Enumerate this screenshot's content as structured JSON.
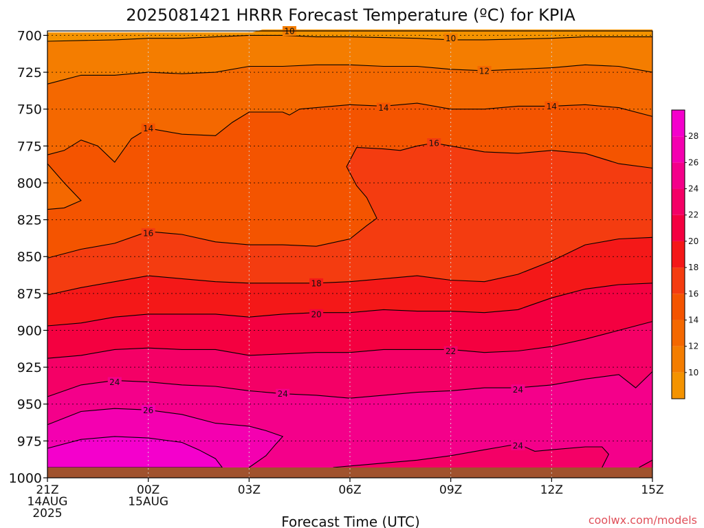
{
  "chart_data": {
    "type": "heatmap",
    "title": "2025081421 HRRR Forecast Temperature (ºC) for KPIA",
    "xlabel": "Forecast Time (UTC)",
    "ylabel": "",
    "credit": "coolwx.com/models",
    "x_ticks": [
      {
        "hour": 0,
        "lines": [
          "21Z",
          "14AUG",
          "2025"
        ]
      },
      {
        "hour": 3,
        "lines": [
          "00Z",
          "15AUG"
        ]
      },
      {
        "hour": 6,
        "lines": [
          "03Z"
        ]
      },
      {
        "hour": 9,
        "lines": [
          "06Z"
        ]
      },
      {
        "hour": 12,
        "lines": [
          "09Z"
        ]
      },
      {
        "hour": 15,
        "lines": [
          "12Z"
        ]
      },
      {
        "hour": 18,
        "lines": [
          "15Z"
        ]
      }
    ],
    "x_range": [
      0,
      18
    ],
    "y_ticks": [
      700,
      725,
      750,
      775,
      800,
      825,
      850,
      875,
      900,
      925,
      950,
      975,
      1000
    ],
    "y_range": [
      697,
      1000
    ],
    "y_reversed": true,
    "ground_top_pressure": 993,
    "colorbar_levels": [
      10,
      12,
      14,
      16,
      18,
      20,
      22,
      24,
      26,
      28
    ],
    "colorbar_colors": [
      "#f49300",
      "#f47d00",
      "#f46800",
      "#f45400",
      "#f43c10",
      "#f41818",
      "#f40040",
      "#f40066",
      "#f4008a",
      "#f400b0",
      "#f400cc"
    ],
    "ground_color": "#a0522d",
    "grid": true,
    "fill_bands": [
      {
        "lower_level": null,
        "color": "#f49300",
        "boundary": [
          [
            0,
            698
          ],
          [
            6.1,
            698
          ],
          [
            6.4,
            696
          ],
          [
            18,
            696
          ]
        ]
      },
      {
        "lower_level": 10,
        "color": "#f47d00",
        "boundary": [
          [
            0,
            704
          ],
          [
            2,
            703
          ],
          [
            3,
            702
          ],
          [
            4,
            702
          ],
          [
            6,
            700
          ],
          [
            7,
            700
          ],
          [
            8,
            701
          ],
          [
            9,
            701
          ],
          [
            11,
            702
          ],
          [
            12,
            703
          ],
          [
            13,
            703
          ],
          [
            15,
            702
          ],
          [
            16,
            701
          ],
          [
            17,
            701
          ],
          [
            18,
            701
          ]
        ]
      },
      {
        "lower_level": 12,
        "color": "#f46800",
        "boundary": [
          [
            0,
            733
          ],
          [
            1,
            727
          ],
          [
            2,
            727
          ],
          [
            3,
            725
          ],
          [
            4,
            726
          ],
          [
            5,
            725
          ],
          [
            6,
            721
          ],
          [
            7,
            721
          ],
          [
            8,
            720
          ],
          [
            9,
            720
          ],
          [
            10,
            721
          ],
          [
            11,
            721
          ],
          [
            12,
            723
          ],
          [
            13,
            724
          ],
          [
            15,
            722
          ],
          [
            16,
            720
          ],
          [
            17,
            721
          ],
          [
            18,
            725
          ]
        ]
      },
      {
        "lower_level": 14,
        "color": "#f45400",
        "boundary": [
          [
            0,
            781
          ],
          [
            0.5,
            778
          ],
          [
            1,
            771
          ],
          [
            1.5,
            775
          ],
          [
            2,
            786
          ],
          [
            2.5,
            770
          ],
          [
            3,
            763
          ],
          [
            4,
            767
          ],
          [
            5,
            768
          ],
          [
            5.5,
            759
          ],
          [
            6,
            752
          ],
          [
            7,
            752
          ],
          [
            7.2,
            754
          ],
          [
            7.5,
            750
          ],
          [
            8,
            749
          ],
          [
            9,
            747
          ],
          [
            10,
            748
          ],
          [
            11,
            746
          ],
          [
            12,
            750
          ],
          [
            13,
            750
          ],
          [
            14,
            748
          ],
          [
            15,
            748
          ],
          [
            16,
            747
          ],
          [
            17,
            749
          ],
          [
            18,
            755
          ]
        ]
      },
      {
        "lower_level": 16,
        "color": "#f43c10",
        "boundary": [
          [
            0,
            851
          ],
          [
            1,
            845
          ],
          [
            2,
            841
          ],
          [
            3,
            833
          ],
          [
            4,
            835
          ],
          [
            5,
            840
          ],
          [
            6,
            842
          ],
          [
            7,
            842
          ],
          [
            8,
            843
          ],
          [
            9,
            838
          ],
          [
            9.5,
            829
          ],
          [
            9.8,
            824
          ],
          [
            9.5,
            810
          ],
          [
            9.2,
            802
          ],
          [
            8.9,
            789
          ],
          [
            9.2,
            776
          ],
          [
            10,
            777
          ],
          [
            10.5,
            778
          ],
          [
            11,
            775
          ],
          [
            11.5,
            773
          ],
          [
            12,
            775
          ],
          [
            13,
            779
          ],
          [
            14,
            780
          ],
          [
            15,
            778
          ],
          [
            16,
            780
          ],
          [
            17,
            787
          ],
          [
            18,
            790
          ]
        ]
      },
      {
        "lower_level": 18,
        "color": "#f41818",
        "boundary": [
          [
            0,
            876
          ],
          [
            1,
            871
          ],
          [
            2,
            867
          ],
          [
            3,
            863
          ],
          [
            4,
            865
          ],
          [
            5,
            867
          ],
          [
            6,
            868
          ],
          [
            7,
            868
          ],
          [
            8,
            868
          ],
          [
            9,
            867
          ],
          [
            10,
            865
          ],
          [
            11,
            863
          ],
          [
            12,
            866
          ],
          [
            13,
            867
          ],
          [
            14,
            862
          ],
          [
            15,
            853
          ],
          [
            16,
            842
          ],
          [
            17,
            838
          ],
          [
            18,
            837
          ]
        ]
      },
      {
        "lower_level": 20,
        "color": "#f40040",
        "boundary": [
          [
            0,
            897
          ],
          [
            1,
            895
          ],
          [
            2,
            891
          ],
          [
            3,
            889
          ],
          [
            4,
            889
          ],
          [
            5,
            889
          ],
          [
            6,
            891
          ],
          [
            7,
            889
          ],
          [
            8,
            888
          ],
          [
            9,
            888
          ],
          [
            10,
            886
          ],
          [
            11,
            887
          ],
          [
            12,
            887
          ],
          [
            13,
            888
          ],
          [
            14,
            886
          ],
          [
            15,
            878
          ],
          [
            16,
            872
          ],
          [
            17,
            869
          ],
          [
            18,
            868
          ]
        ]
      },
      {
        "lower_level": 22,
        "color": "#f40066",
        "boundary": [
          [
            0,
            919
          ],
          [
            1,
            917
          ],
          [
            2,
            913
          ],
          [
            3,
            912
          ],
          [
            4,
            913
          ],
          [
            5,
            913
          ],
          [
            6,
            917
          ],
          [
            7,
            916
          ],
          [
            8,
            915
          ],
          [
            9,
            915
          ],
          [
            10,
            913
          ],
          [
            11,
            913
          ],
          [
            12,
            913
          ],
          [
            13,
            915
          ],
          [
            14,
            914
          ],
          [
            15,
            911
          ],
          [
            16,
            906
          ],
          [
            17,
            900
          ],
          [
            18,
            894
          ]
        ]
      },
      {
        "lower_level": 24,
        "color": "#f4008a",
        "boundary": [
          [
            0,
            945
          ],
          [
            1,
            937
          ],
          [
            2,
            934
          ],
          [
            3,
            935
          ],
          [
            4,
            937
          ],
          [
            5,
            938
          ],
          [
            6,
            941
          ],
          [
            7,
            943
          ],
          [
            8,
            944
          ],
          [
            9,
            946
          ],
          [
            10,
            944
          ],
          [
            11,
            942
          ],
          [
            12,
            941
          ],
          [
            13,
            939
          ],
          [
            14,
            939
          ],
          [
            15,
            937
          ],
          [
            16,
            933
          ],
          [
            17,
            930
          ],
          [
            17.5,
            939
          ],
          [
            18,
            928
          ]
        ]
      },
      {
        "lower_level": 26,
        "color": "#f400b0",
        "boundary": [
          [
            0,
            964
          ],
          [
            1,
            955
          ],
          [
            2,
            953
          ],
          [
            3,
            954
          ],
          [
            4,
            957
          ],
          [
            5,
            963
          ],
          [
            6,
            965
          ],
          [
            6.5,
            968
          ],
          [
            7,
            972
          ],
          [
            6.8,
            977
          ],
          [
            6.5,
            985
          ],
          [
            6,
            993
          ]
        ]
      }
    ],
    "pocket_bands": [
      {
        "lower_level": 14,
        "color": "#f46800",
        "boundary": [
          [
            0,
            787
          ],
          [
            0.5,
            800
          ],
          [
            1,
            812
          ],
          [
            0.5,
            817
          ],
          [
            0,
            818
          ]
        ]
      },
      {
        "lower_level": 26,
        "color": "#f400cc",
        "boundary": [
          [
            0,
            980
          ],
          [
            1,
            974
          ],
          [
            2,
            972
          ],
          [
            3,
            973
          ],
          [
            4,
            976
          ],
          [
            4.5,
            981
          ],
          [
            5,
            987
          ],
          [
            5.2,
            993
          ],
          [
            0,
            993
          ]
        ]
      },
      {
        "lower_level": 24,
        "color": "#f40066",
        "boundary": [
          [
            8.5,
            993
          ],
          [
            11,
            988
          ],
          [
            12,
            985
          ],
          [
            13,
            981
          ],
          [
            13.5,
            979
          ],
          [
            14,
            977
          ],
          [
            14.5,
            982
          ],
          [
            15,
            981
          ],
          [
            16,
            979
          ],
          [
            16.5,
            979
          ],
          [
            16.7,
            984
          ],
          [
            16.5,
            993
          ]
        ]
      },
      {
        "lower_level": 24,
        "color": "#f40066",
        "boundary": [
          [
            17.6,
            993
          ],
          [
            18,
            988
          ],
          [
            18,
            993
          ]
        ]
      }
    ],
    "contour_labels": [
      {
        "value": "10",
        "x": 7.2,
        "y": 697
      },
      {
        "value": "10",
        "x": 12.0,
        "y": 702
      },
      {
        "value": "12",
        "x": 13.0,
        "y": 724
      },
      {
        "value": "14",
        "x": 10.0,
        "y": 749
      },
      {
        "value": "14",
        "x": 15.0,
        "y": 748
      },
      {
        "value": "14",
        "x": 3.0,
        "y": 763
      },
      {
        "value": "16",
        "x": 11.5,
        "y": 773
      },
      {
        "value": "16",
        "x": 3.0,
        "y": 834
      },
      {
        "value": "18",
        "x": 8.0,
        "y": 868
      },
      {
        "value": "20",
        "x": 8.0,
        "y": 889
      },
      {
        "value": "22",
        "x": 12.0,
        "y": 914
      },
      {
        "value": "24",
        "x": 2.0,
        "y": 935
      },
      {
        "value": "24",
        "x": 7.0,
        "y": 943
      },
      {
        "value": "24",
        "x": 14.0,
        "y": 940
      },
      {
        "value": "26",
        "x": 3.0,
        "y": 954
      },
      {
        "value": "24",
        "x": 14.0,
        "y": 978
      }
    ]
  }
}
